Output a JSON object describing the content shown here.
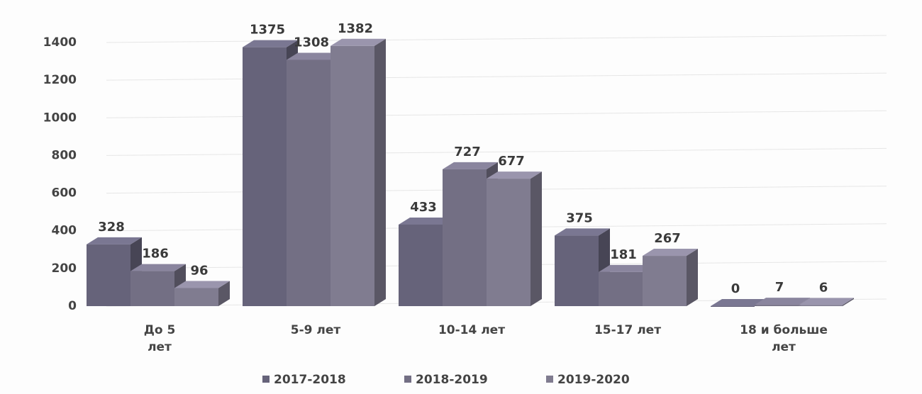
{
  "chart_data": {
    "type": "bar3d",
    "categories": [
      "До 5 лет",
      "5-9 лет",
      "10-14 лет",
      "15-17 лет",
      "18 и больше лет"
    ],
    "series": [
      {
        "name": "2017-2018",
        "color": "#66637a",
        "values": [
          328,
          1375,
          433,
          375,
          0
        ]
      },
      {
        "name": "2018-2019",
        "color": "#736f84",
        "values": [
          186,
          1308,
          727,
          181,
          7
        ]
      },
      {
        "name": "2019-2020",
        "color": "#807c90",
        "values": [
          96,
          1382,
          677,
          267,
          6
        ]
      }
    ],
    "ylim": [
      0,
      1400
    ],
    "yticks": [
      0,
      200,
      400,
      600,
      800,
      1000,
      1200,
      1400
    ],
    "grid": true,
    "legend": "bottom"
  }
}
